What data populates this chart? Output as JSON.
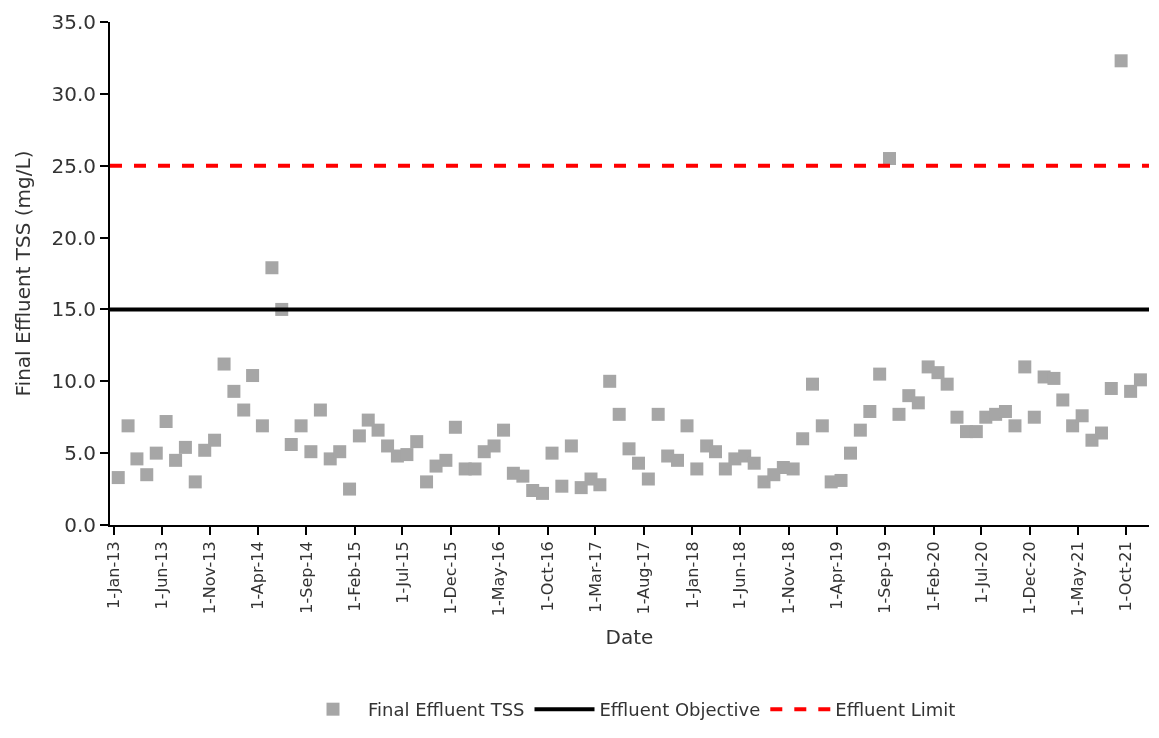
{
  "chart_data": {
    "type": "scatter",
    "xlabel": "Date",
    "ylabel": "Final Effluent TSS (mg/L)",
    "marker": "square",
    "legend": "bottom",
    "x": [
      "2013-01-15",
      "2013-02-15",
      "2013-03-15",
      "2013-04-15",
      "2013-05-15",
      "2013-06-15",
      "2013-07-15",
      "2013-08-15",
      "2013-09-15",
      "2013-10-15",
      "2013-11-15",
      "2013-12-15",
      "2014-01-15",
      "2014-02-15",
      "2014-03-15",
      "2014-04-15",
      "2014-05-15",
      "2014-06-15",
      "2014-07-15",
      "2014-08-15",
      "2014-09-15",
      "2014-10-15",
      "2014-11-15",
      "2014-12-15",
      "2015-01-15",
      "2015-02-15",
      "2015-03-15",
      "2015-04-15",
      "2015-05-15",
      "2015-06-15",
      "2015-07-15",
      "2015-08-15",
      "2015-09-15",
      "2015-10-15",
      "2015-11-15",
      "2015-12-15",
      "2016-01-15",
      "2016-02-15",
      "2016-03-15",
      "2016-04-15",
      "2016-05-15",
      "2016-06-15",
      "2016-07-15",
      "2016-08-15",
      "2016-09-15",
      "2016-10-15",
      "2016-11-15",
      "2016-12-15",
      "2017-01-15",
      "2017-02-15",
      "2017-03-15",
      "2017-04-15",
      "2017-05-15",
      "2017-06-15",
      "2017-07-15",
      "2017-08-15",
      "2017-09-15",
      "2017-10-15",
      "2017-11-15",
      "2017-12-15",
      "2018-01-15",
      "2018-02-15",
      "2018-03-15",
      "2018-04-15",
      "2018-05-15",
      "2018-06-15",
      "2018-07-15",
      "2018-08-15",
      "2018-09-15",
      "2018-10-15",
      "2018-11-15",
      "2018-12-15",
      "2019-01-15",
      "2019-02-15",
      "2019-03-15",
      "2019-04-15",
      "2019-05-15",
      "2019-06-15",
      "2019-07-15",
      "2019-08-15",
      "2019-09-15",
      "2019-10-15",
      "2019-11-15",
      "2019-12-15",
      "2020-01-15",
      "2020-02-15",
      "2020-03-15",
      "2020-04-15",
      "2020-05-15",
      "2020-06-15",
      "2020-07-15",
      "2020-08-15",
      "2020-09-15",
      "2020-10-15",
      "2020-11-15",
      "2020-12-15",
      "2021-01-15",
      "2021-02-15",
      "2021-03-15",
      "2021-04-15",
      "2021-05-15",
      "2021-06-15",
      "2021-07-15",
      "2021-08-15",
      "2021-09-15",
      "2021-10-15",
      "2021-11-15"
    ],
    "series": [
      {
        "name": "Final Effluent TSS",
        "color": "#a6a6a6",
        "values": [
          3.3,
          6.9,
          4.6,
          3.5,
          5.0,
          7.2,
          4.5,
          5.4,
          3.0,
          5.2,
          5.9,
          11.2,
          9.3,
          8.0,
          10.4,
          6.9,
          17.9,
          15.0,
          5.6,
          6.9,
          5.1,
          8.0,
          4.6,
          5.1,
          2.5,
          6.2,
          7.3,
          6.6,
          5.5,
          4.8,
          4.9,
          5.8,
          3.0,
          4.1,
          4.5,
          6.8,
          3.9,
          3.9,
          5.1,
          5.5,
          6.6,
          3.6,
          3.4,
          2.4,
          2.2,
          5.0,
          2.7,
          5.5,
          2.6,
          3.2,
          2.8,
          10.0,
          7.7,
          5.3,
          4.3,
          3.2,
          7.7,
          4.8,
          4.5,
          6.9,
          3.9,
          5.5,
          5.1,
          3.9,
          4.6,
          4.8,
          4.3,
          3.0,
          3.5,
          4.0,
          3.9,
          6.0,
          9.8,
          6.9,
          3.0,
          3.1,
          5.0,
          6.6,
          7.9,
          10.5,
          25.5,
          7.7,
          9.0,
          8.5,
          11.0,
          10.6,
          9.8,
          7.5,
          6.5,
          6.5,
          7.5,
          7.7,
          7.9,
          6.9,
          11.0,
          7.5,
          10.3,
          10.2,
          8.7,
          6.9,
          7.6,
          5.9,
          6.4,
          9.5,
          32.3,
          9.3,
          10.1
        ]
      }
    ],
    "ref_lines": [
      {
        "axis": "y",
        "value": 15,
        "label": "Effluent Objective",
        "color": "#000000",
        "line_style": "solid"
      },
      {
        "axis": "y",
        "value": 25,
        "label": "Effluent Limit",
        "color": "#ff0000",
        "line_style": "dashed"
      }
    ],
    "xlim": [
      "2012-12-20",
      "2021-12-12"
    ],
    "xticks": [
      {
        "value": "2013-01-01",
        "label": "1-Jan-13"
      },
      {
        "value": "2013-06-01",
        "label": "1-Jun-13"
      },
      {
        "value": "2013-11-01",
        "label": "1-Nov-13"
      },
      {
        "value": "2014-04-01",
        "label": "1-Apr-14"
      },
      {
        "value": "2014-09-01",
        "label": "1-Sep-14"
      },
      {
        "value": "2015-02-01",
        "label": "1-Feb-15"
      },
      {
        "value": "2015-07-01",
        "label": "1-Jul-15"
      },
      {
        "value": "2015-12-01",
        "label": "1-Dec-15"
      },
      {
        "value": "2016-05-01",
        "label": "1-May-16"
      },
      {
        "value": "2016-10-01",
        "label": "1-Oct-16"
      },
      {
        "value": "2017-03-01",
        "label": "1-Mar-17"
      },
      {
        "value": "2017-08-01",
        "label": "1-Aug-17"
      },
      {
        "value": "2018-01-01",
        "label": "1-Jan-18"
      },
      {
        "value": "2018-06-01",
        "label": "1-Jun-18"
      },
      {
        "value": "2018-11-01",
        "label": "1-Nov-18"
      },
      {
        "value": "2019-04-01",
        "label": "1-Apr-19"
      },
      {
        "value": "2019-09-01",
        "label": "1-Sep-19"
      },
      {
        "value": "2020-02-01",
        "label": "1-Feb-20"
      },
      {
        "value": "2020-07-01",
        "label": "1-Jul-20"
      },
      {
        "value": "2020-12-01",
        "label": "1-Dec-20"
      },
      {
        "value": "2021-05-01",
        "label": "1-May-21"
      },
      {
        "value": "2021-10-01",
        "label": "1-Oct-21"
      }
    ],
    "ylim": [
      0,
      35
    ],
    "yticks": [
      {
        "value": 0,
        "label": "0.0"
      },
      {
        "value": 5,
        "label": "5.0"
      },
      {
        "value": 10,
        "label": "10.0"
      },
      {
        "value": 15,
        "label": "15.0"
      },
      {
        "value": 20,
        "label": "20.0"
      },
      {
        "value": 25,
        "label": "25.0"
      },
      {
        "value": 30,
        "label": "30.0"
      },
      {
        "value": 35,
        "label": "35.0"
      }
    ]
  }
}
